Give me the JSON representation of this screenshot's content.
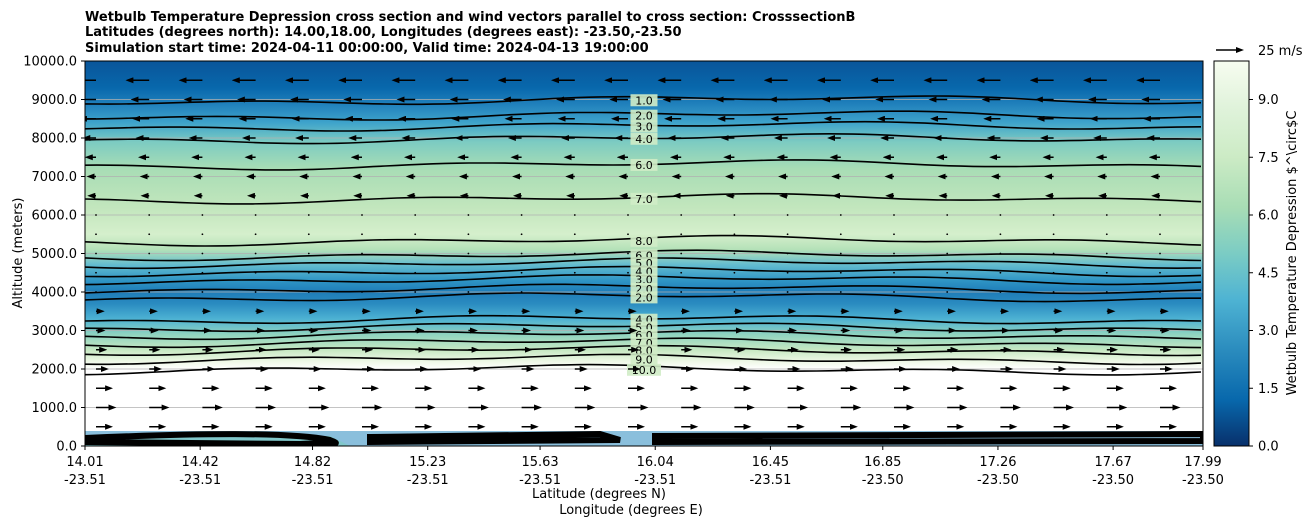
{
  "chart_data": {
    "type": "contour",
    "title_lines": [
      "Wetbulb Temperature Depression cross section and wind vectors parallel to cross section: CrosssectionB",
      "Latitudes (degrees north): 14.00,18.00, Longitudes (degrees east): -23.50,-23.50",
      "Simulation start time: 2024-04-11 00:00:00, Valid time: 2024-04-13 19:00:00"
    ],
    "xlabel": "Latitude (degrees N)",
    "xlabel2": "Longitude (degrees E)",
    "ylabel": "Altitude (meters)",
    "colorbar_label": "Wetbulb Temperature Depression $^\\circ$C",
    "ylim": [
      0,
      10000
    ],
    "yticks": [
      "0.0",
      "1000.0",
      "2000.0",
      "3000.0",
      "4000.0",
      "5000.0",
      "6000.0",
      "7000.0",
      "8000.0",
      "9000.0",
      "10000.0"
    ],
    "ytick_values": [
      0,
      1000,
      2000,
      3000,
      4000,
      5000,
      6000,
      7000,
      8000,
      9000,
      10000
    ],
    "xticks": [
      {
        "lat": "14.01",
        "lon": "-23.51"
      },
      {
        "lat": "14.42",
        "lon": "-23.51"
      },
      {
        "lat": "14.82",
        "lon": "-23.51"
      },
      {
        "lat": "15.23",
        "lon": "-23.51"
      },
      {
        "lat": "15.63",
        "lon": "-23.51"
      },
      {
        "lat": "16.04",
        "lon": "-23.51"
      },
      {
        "lat": "16.45",
        "lon": "-23.51"
      },
      {
        "lat": "16.85",
        "lon": "-23.50"
      },
      {
        "lat": "17.26",
        "lon": "-23.50"
      },
      {
        "lat": "17.67",
        "lon": "-23.50"
      },
      {
        "lat": "17.99",
        "lon": "-23.50"
      }
    ],
    "xtick_values": [
      14.01,
      14.42,
      14.82,
      15.23,
      15.63,
      16.04,
      16.45,
      16.85,
      17.26,
      17.67,
      17.99
    ],
    "xlim": [
      14.01,
      17.99
    ],
    "colorbar_ticks": [
      "0.0",
      "1.5",
      "3.0",
      "4.5",
      "6.0",
      "7.5",
      "9.0"
    ],
    "colorbar_tick_values": [
      0,
      1.5,
      3.0,
      4.5,
      6.0,
      7.5,
      9.0
    ],
    "colorbar_range": [
      0,
      10
    ],
    "colormap": [
      "#08306b",
      "#0868ac",
      "#2b8cbe",
      "#4eb3d3",
      "#7bccc4",
      "#a8ddb5",
      "#ccebc5",
      "#e0f3db",
      "#f7fcf0"
    ],
    "quiver_key": "25 m/s",
    "grid": "horizontal",
    "contour_levels": [
      {
        "label": "1.0",
        "altitude": 8980
      },
      {
        "label": "2.0",
        "altitude": 8580
      },
      {
        "label": "3.0",
        "altitude": 8300
      },
      {
        "label": "4.0",
        "altitude": 7980
      },
      {
        "label": "6.0",
        "altitude": 7300
      },
      {
        "label": "7.0",
        "altitude": 6420
      },
      {
        "label": "8.0",
        "altitude": 5330
      },
      {
        "label": "6.0",
        "altitude": 4950
      },
      {
        "label": "5.0",
        "altitude": 4750
      },
      {
        "label": "4.0",
        "altitude": 4530
      },
      {
        "label": "3.0",
        "altitude": 4320
      },
      {
        "label": "2.0",
        "altitude": 4080
      },
      {
        "label": "2.0",
        "altitude": 3860
      },
      {
        "label": "4.0",
        "altitude": 3280
      },
      {
        "label": "5.0",
        "altitude": 3080
      },
      {
        "label": "6.0",
        "altitude": 2880
      },
      {
        "label": "7.0",
        "altitude": 2680
      },
      {
        "label": "8.0",
        "altitude": 2480
      },
      {
        "label": "9.0",
        "altitude": 2250
      },
      {
        "label": "10.0",
        "altitude": 1980
      }
    ],
    "wind_rows": [
      {
        "altitude": 9500,
        "u": -20
      },
      {
        "altitude": 9000,
        "u": -14
      },
      {
        "altitude": 8500,
        "u": -12
      },
      {
        "altitude": 8000,
        "u": -8
      },
      {
        "altitude": 7500,
        "u": -5
      },
      {
        "altitude": 7000,
        "u": -3
      },
      {
        "altitude": 6500,
        "u": -2
      },
      {
        "altitude": 6000,
        "u": -1
      },
      {
        "altitude": 5500,
        "u": -1
      },
      {
        "altitude": 5000,
        "u": -1
      },
      {
        "altitude": 4500,
        "u": 0
      },
      {
        "altitude": 4000,
        "u": 1
      },
      {
        "altitude": 3500,
        "u": 2
      },
      {
        "altitude": 3000,
        "u": 3
      },
      {
        "altitude": 2500,
        "u": 5
      },
      {
        "altitude": 2000,
        "u": 7
      },
      {
        "altitude": 1500,
        "u": 12
      },
      {
        "altitude": 1000,
        "u": 16
      },
      {
        "altitude": 500,
        "u": 12
      }
    ]
  }
}
